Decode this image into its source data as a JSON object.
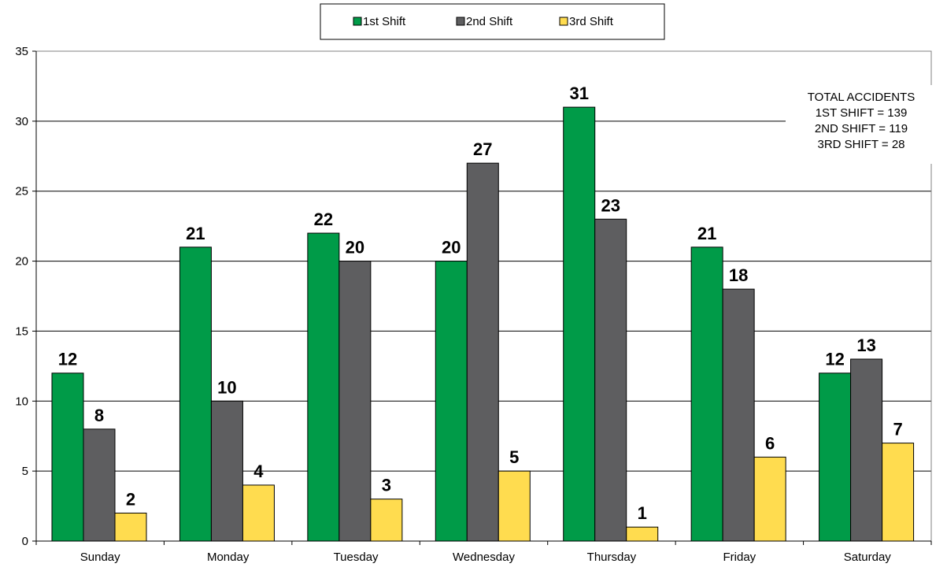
{
  "chart_data": {
    "type": "bar",
    "categories": [
      "Sunday",
      "Monday",
      "Tuesday",
      "Wednesday",
      "Thursday",
      "Friday",
      "Saturday"
    ],
    "series": [
      {
        "name": "1st Shift",
        "values": [
          12,
          21,
          22,
          20,
          31,
          21,
          12
        ],
        "color": "#009B48"
      },
      {
        "name": "2nd Shift",
        "values": [
          8,
          10,
          20,
          27,
          23,
          18,
          13
        ],
        "color": "#5E5E60"
      },
      {
        "name": "3rd Shift",
        "values": [
          2,
          4,
          3,
          5,
          1,
          6,
          7
        ],
        "color": "#FFDC4F"
      }
    ],
    "yticks": [
      0,
      5,
      10,
      15,
      20,
      25,
      30,
      35
    ],
    "ylim": [
      0,
      35
    ],
    "grid": true,
    "legend_position": "top-center",
    "annotation": {
      "lines": [
        "TOTAL ACCIDENTS",
        "1ST SHIFT = 139",
        "2ND SHIFT = 119",
        "3RD SHIFT = 28"
      ],
      "position": "top-right"
    }
  }
}
